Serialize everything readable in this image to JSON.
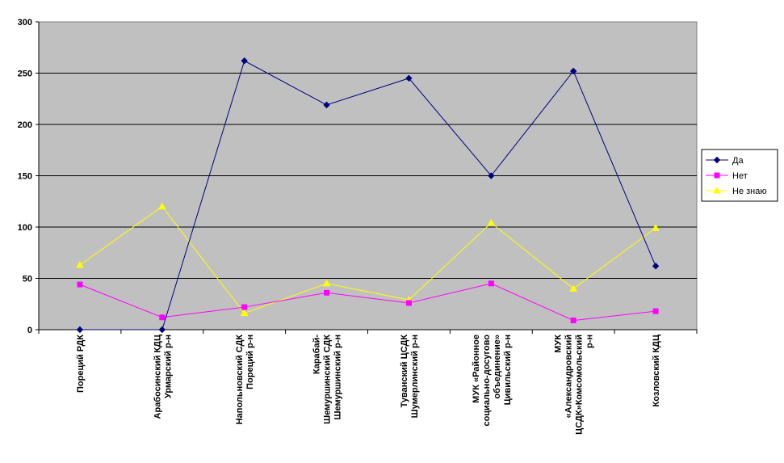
{
  "chart_data": {
    "type": "line",
    "title": "",
    "xlabel": "",
    "ylabel": "",
    "ylim": [
      0,
      300
    ],
    "yticks": [
      0,
      50,
      100,
      150,
      200,
      250,
      300
    ],
    "grid": "horizontal",
    "legend_position": "right",
    "plot_background": "#c0c0c0",
    "categories": [
      "Пореций РДК",
      "Арабосинский КДЦ Урмарский р-н",
      "Напольновский СДК Пореций р-н",
      "Карабай-Шемуршинский СДК Шемуршинский р-н",
      "Туванский ЦСДК Шумерлинский р-н",
      "МУК «Районное социально-досугово объединение» Цивильский р-н",
      "МУК «Александровский ЦСДК»Комсомольский р-н",
      "Козловский КДЦ"
    ],
    "category_lines": [
      [
        "Пореций РДК"
      ],
      [
        "Арабосинский КДЦ",
        "Урмарский р-н"
      ],
      [
        "Напольновский СДК",
        "Пореций р-н"
      ],
      [
        "Карабай-",
        "Шемуршинский СДК",
        "Шемуршинский р-н"
      ],
      [
        "Туванский ЦСДК",
        "Шумерлинский р-н"
      ],
      [
        "МУК «Районное",
        "социально-досугово",
        "объединение»",
        "Цивильский р-н"
      ],
      [
        "МУК",
        "«Александровский",
        "ЦСДК»Комсомольский",
        "р-н"
      ],
      [
        "Козловский КДЦ"
      ]
    ],
    "series": [
      {
        "name": "Да",
        "color": "#000080",
        "marker": "diamond",
        "values": [
          0,
          0,
          262,
          219,
          245,
          150,
          252,
          62
        ]
      },
      {
        "name": "Нет",
        "color": "#ff00ff",
        "marker": "square",
        "values": [
          44,
          12,
          22,
          36,
          26,
          45,
          9,
          18
        ]
      },
      {
        "name": "Не знаю",
        "color": "#ffff00",
        "marker": "triangle",
        "values": [
          63,
          120,
          16,
          45,
          29,
          104,
          40,
          99
        ]
      }
    ]
  }
}
